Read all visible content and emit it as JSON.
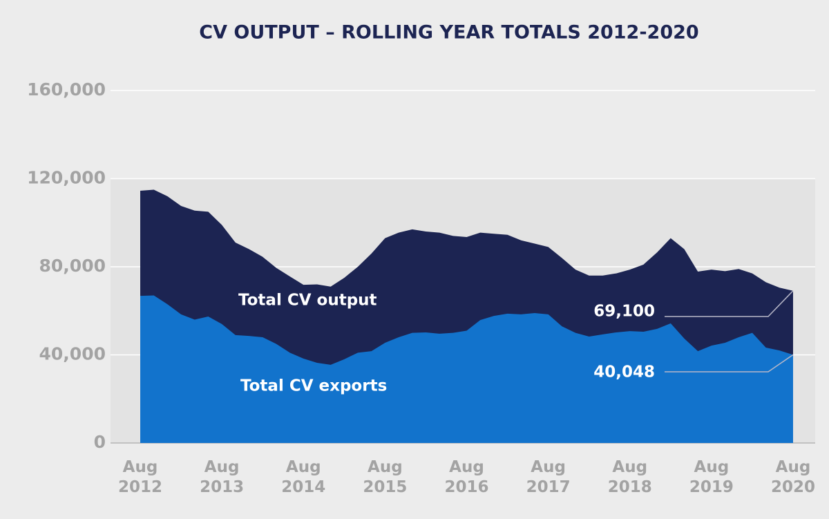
{
  "chart_data": {
    "type": "area",
    "title": "CV OUTPUT – ROLLING YEAR TOTALS 2012-2020",
    "categories": [
      "Aug 2012",
      null,
      null,
      null,
      null,
      null,
      "Aug 2013",
      null,
      null,
      null,
      null,
      null,
      "Aug 2014",
      null,
      null,
      null,
      null,
      null,
      "Aug 2015",
      null,
      null,
      null,
      null,
      null,
      "Aug 2016",
      null,
      null,
      null,
      null,
      null,
      "Aug 2017",
      null,
      null,
      null,
      null,
      null,
      "Aug 2018",
      null,
      null,
      null,
      null,
      null,
      "Aug 2019",
      null,
      null,
      null,
      null,
      null,
      "Aug 2020"
    ],
    "series": [
      {
        "name": "Total CV output",
        "color": "#1c2452",
        "values": [
          114500,
          115000,
          112000,
          107600,
          105500,
          105000,
          99000,
          91000,
          88000,
          84500,
          79500,
          75600,
          71800,
          72000,
          71000,
          75000,
          80000,
          86000,
          93000,
          95500,
          97000,
          96000,
          95500,
          94000,
          93500,
          95500,
          95000,
          94500,
          92000,
          90500,
          89000,
          84000,
          78700,
          76000,
          76000,
          77000,
          78700,
          81000,
          86500,
          93000,
          88000,
          77800,
          78700,
          78000,
          79000,
          77000,
          73000,
          70500,
          69100
        ],
        "value_labels": [
          null,
          null,
          null,
          null,
          null,
          null,
          null,
          null,
          null,
          null,
          null,
          null,
          null,
          null,
          null,
          null,
          null,
          null,
          null,
          null,
          null,
          null,
          null,
          null,
          null,
          null,
          null,
          null,
          null,
          null,
          null,
          null,
          null,
          null,
          null,
          null,
          null,
          null,
          null,
          null,
          null,
          null,
          null,
          null,
          null,
          null,
          null,
          null,
          "69,100"
        ]
      },
      {
        "name": "Total CV exports",
        "color": "#1273cc",
        "values": [
          66800,
          67000,
          63000,
          58400,
          56000,
          57400,
          54000,
          49000,
          48600,
          48000,
          45000,
          41000,
          38300,
          36400,
          35500,
          38000,
          41000,
          41700,
          45500,
          48000,
          50000,
          50200,
          49600,
          50000,
          51000,
          55800,
          57700,
          58700,
          58400,
          59000,
          58400,
          53000,
          50000,
          48300,
          49300,
          50200,
          50800,
          50500,
          51800,
          54300,
          47400,
          41700,
          44200,
          45500,
          48000,
          50000,
          43300,
          42000,
          40048
        ],
        "value_labels": [
          null,
          null,
          null,
          null,
          null,
          null,
          null,
          null,
          null,
          null,
          null,
          null,
          null,
          null,
          null,
          null,
          null,
          null,
          null,
          null,
          null,
          null,
          null,
          null,
          null,
          null,
          null,
          null,
          null,
          null,
          null,
          null,
          null,
          null,
          null,
          null,
          null,
          null,
          null,
          null,
          null,
          null,
          null,
          null,
          null,
          null,
          null,
          null,
          "40,048"
        ]
      }
    ],
    "ylim": [
      0,
      160000
    ],
    "yticks": [
      0,
      {
        "value": 40000,
        "label": "40,000"
      },
      {
        "value": 80000,
        "label": "80,000"
      },
      {
        "value": 120000,
        "label": "120,000"
      },
      {
        "value": 160000,
        "label": "160,000"
      }
    ],
    "grid": true
  }
}
